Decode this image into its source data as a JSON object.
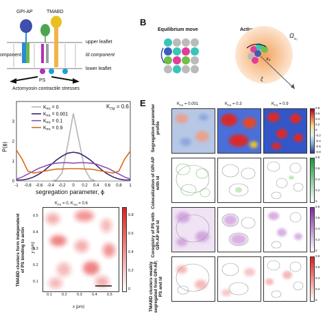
{
  "panel_a": {
    "labels": {
      "gpi_ap": "GPI-AP",
      "tmabd": "TMABD",
      "upper_leaflet": "upper leaflet",
      "ld_component": "ld component",
      "component_left": "omponent",
      "lower_leaflet": "lower leaflet",
      "ps": "PS",
      "stresses": "Actomyosin contractile stresses"
    }
  },
  "panel_b": {
    "letter": "B",
    "equilibrium": "Equilibrium move",
    "active": "Active move",
    "omega": "Ω",
    "omega_sub": "x₀",
    "x0": "x₀",
    "xi": "ξ"
  },
  "panel_c": {
    "kps_label": "K",
    "ktm": "K",
    "ktm_value": "= 0.6",
    "ylabel": "P(ϕ)",
    "xlabel": "segregation parameter, ϕ",
    "chart_data": {
      "type": "line",
      "xlim": [
        -1,
        1
      ],
      "ylim": [
        0,
        4
      ],
      "xticks": [
        "-1",
        "-0.8",
        "-0.6",
        "-0.4",
        "-0.2",
        "0",
        "0.2",
        "0.4",
        "0.6",
        "0.8",
        "1"
      ],
      "xtick_values": [
        -1,
        -0.8,
        -0.6,
        -0.4,
        -0.2,
        0,
        0.2,
        0.4,
        0.6,
        0.8,
        1
      ],
      "yticks": [
        "0",
        "1",
        "2",
        "3"
      ],
      "ytick_values": [
        0,
        1,
        2,
        3
      ],
      "x": [
        -1.0,
        -0.9,
        -0.8,
        -0.7,
        -0.6,
        -0.5,
        -0.4,
        -0.3,
        -0.2,
        -0.1,
        0.0,
        0.1,
        0.2,
        0.3,
        0.4,
        0.5,
        0.6,
        0.7,
        0.8,
        0.9,
        1.0
      ],
      "series": [
        {
          "name": "= 0",
          "color": "#b4b4b4",
          "values": [
            0,
            0,
            0,
            0,
            0,
            0,
            0,
            0.05,
            0.4,
            1.8,
            3.4,
            2.0,
            0.6,
            0.1,
            0,
            0,
            0,
            0,
            0,
            0,
            0
          ]
        },
        {
          "name": "= 0.001",
          "color": "#3b1f6e",
          "values": [
            0.05,
            0.05,
            0.1,
            0.2,
            0.35,
            0.55,
            0.8,
            1.05,
            1.25,
            1.4,
            1.45,
            1.4,
            1.25,
            1.05,
            0.8,
            0.55,
            0.35,
            0.2,
            0.1,
            0.05,
            0.05
          ]
        },
        {
          "name": "= 0.1",
          "color": "#8a4fb0",
          "values": [
            0.1,
            0.2,
            0.35,
            0.5,
            0.65,
            0.75,
            0.85,
            0.9,
            0.92,
            0.92,
            0.9,
            0.92,
            0.92,
            0.9,
            0.85,
            0.75,
            0.65,
            0.5,
            0.35,
            0.2,
            0.1
          ]
        },
        {
          "name": "= 0.9",
          "color": "#d56a14",
          "values": [
            1.55,
            1.1,
            0.5,
            0.4,
            0.45,
            0.5,
            0.55,
            0.6,
            0.6,
            0.62,
            0.62,
            0.62,
            0.6,
            0.6,
            0.55,
            0.5,
            0.45,
            0.4,
            0.5,
            1.1,
            1.5
          ]
        }
      ]
    }
  },
  "panel_d": {
    "title": "K",
    "title_mid": "= 0, K",
    "title_end": "= 0.6",
    "ylabel": "TMABD clusters form independent of PS binding to actin",
    "y_axis": "y (μm)",
    "x_axis": "x (μm)",
    "xticks": [
      "0.1",
      "0.2",
      "0.3",
      "0.4",
      "0.5"
    ],
    "yticks": [
      "0.1",
      "0.2",
      "0.3",
      "0.4",
      "0.5"
    ],
    "cbar_ticks": [
      "0",
      "0.2",
      "0.4",
      "0.6",
      "0.8"
    ]
  },
  "panel_e": {
    "letter": "E",
    "col_titles": [
      "= 0.001",
      "= 0.3",
      "= 0.9"
    ],
    "row_labels": [
      "Segregation parameter profile",
      "Colocalization of GPI-AP with ld",
      "Coregistry of PS with GPI-AP and ld",
      "TMABD clusters weakly segregated from GPI-AP, PS and ld"
    ],
    "cbar1_ticks": [
      "0.8",
      "0.6",
      "0.4",
      "0.2",
      "0",
      "-0.2",
      "-0.4",
      "-0.6",
      "-0.8"
    ],
    "cbar2_ticks": [
      "0.8",
      "0.6",
      "0.4",
      "0.2",
      "0"
    ],
    "cbar3_ticks": [
      "0.8",
      "0.6",
      "0.4",
      "0.2",
      "0"
    ],
    "cbar4_ticks": [
      "0.8",
      "0.6",
      "0.4",
      "0.2",
      "0"
    ]
  }
}
